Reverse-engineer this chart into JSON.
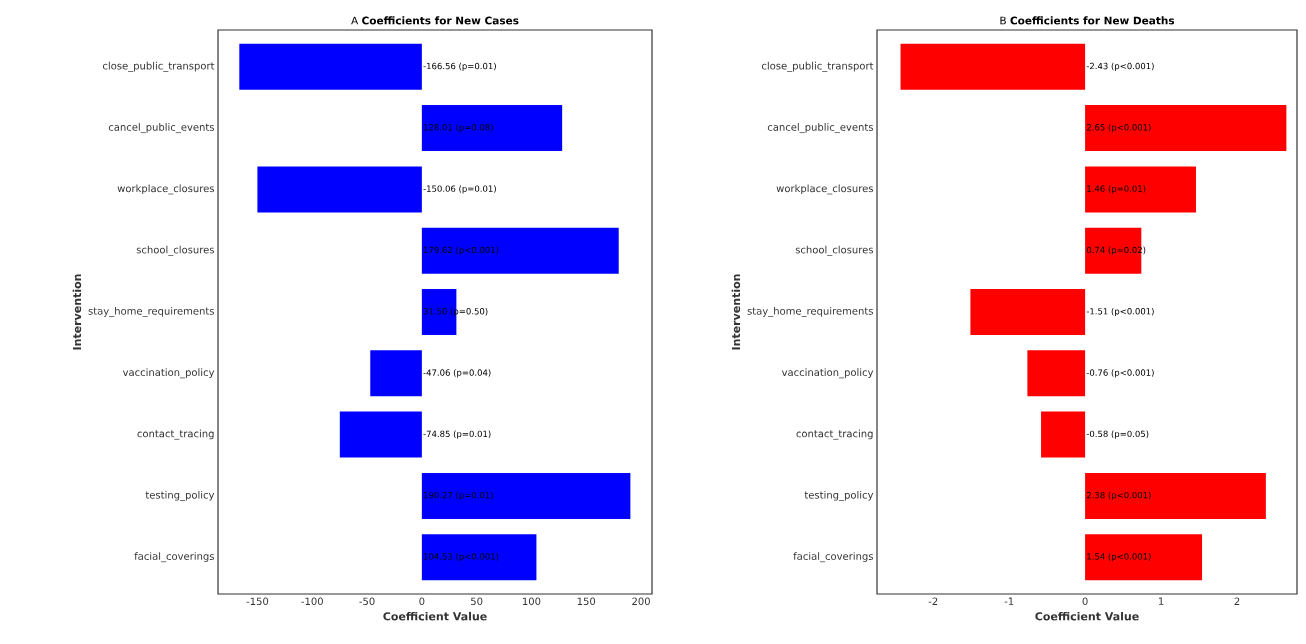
{
  "chart_data": [
    {
      "type": "bar",
      "orientation": "horizontal",
      "title": "A  **Coefficients for New Cases**",
      "xlabel": "Coefficient Value",
      "ylabel": "Intervention",
      "categories": [
        "close_public_transport",
        "cancel_public_events",
        "workplace_closures",
        "school_closures",
        "stay_home_requirements",
        "vaccination_policy",
        "contact_tracing",
        "testing_policy",
        "facial_coverings"
      ],
      "values": [
        -166.56,
        128.01,
        -150.06,
        179.62,
        31.5,
        -47.06,
        -74.85,
        190.27,
        104.53
      ],
      "value_labels": [
        "-166.56 (p=0.01)",
        "128.01 (p=0.08)",
        "-150.06 (p=0.01)",
        "179.62 (p<0.001)",
        "31.50 (p=0.50)",
        "-47.06 (p=0.04)",
        "-74.85 (p=0.01)",
        "190.27 (p=0.01)",
        "104.53 (p<0.001)"
      ],
      "color": "#0000ff",
      "xlim": [
        -186,
        210
      ],
      "xticks": [
        -150,
        -100,
        -50,
        0,
        50,
        100,
        150,
        200
      ]
    },
    {
      "type": "bar",
      "orientation": "horizontal",
      "title": "B **Coefficients for New Deaths**",
      "xlabel": "Coefficient Value",
      "ylabel": "Intervention",
      "categories": [
        "close_public_transport",
        "cancel_public_events",
        "workplace_closures",
        "school_closures",
        "stay_home_requirements",
        "vaccination_policy",
        "contact_tracing",
        "testing_policy",
        "facial_coverings"
      ],
      "values": [
        -2.43,
        2.65,
        1.46,
        0.74,
        -1.51,
        -0.76,
        -0.58,
        2.38,
        1.54
      ],
      "value_labels": [
        "-2.43 (p<0.001)",
        "2.65 (p<0.001)",
        "1.46 (p=0.01)",
        "0.74 (p=0.02)",
        "-1.51 (p<0.001)",
        "-0.76 (p<0.001)",
        "-0.58 (p=0.05)",
        "2.38 (p<0.001)",
        "1.54 (p<0.001)"
      ],
      "color": "#ff0000",
      "xlim": [
        -2.74,
        2.79
      ],
      "xticks": [
        -2,
        -1,
        0,
        1,
        2
      ]
    }
  ]
}
